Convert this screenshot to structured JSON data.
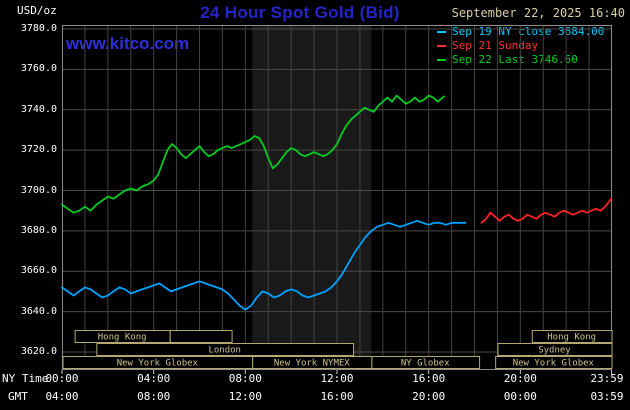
{
  "header": {
    "title": "24 Hour Spot Gold (Bid)",
    "datetime": "September 22, 2025 16:40",
    "watermark": "www.kitco.com",
    "legend": [
      {
        "label": "Sep 19 NY close 3684.00",
        "color": "#00ccff"
      },
      {
        "label": "Sep 21 Sunday",
        "color": "#ff3030"
      },
      {
        "label": "Sep 22 Last 3746.60",
        "color": "#00cc22"
      }
    ]
  },
  "axes": {
    "unit": "USD/oz",
    "ny_label": "NY Time",
    "gmt_label": "GMT",
    "y_ticks": [
      "3780.0",
      "3760.0",
      "3740.0",
      "3720.0",
      "3700.0",
      "3680.0",
      "3660.0",
      "3640.0",
      "3620.0"
    ],
    "ny_ticks": [
      "00:00",
      "04:00",
      "08:00",
      "12:00",
      "16:00",
      "20:00",
      "23:59"
    ],
    "gmt_ticks": [
      "04:00",
      "08:00",
      "12:00",
      "16:00",
      "20:00",
      "00:00",
      "03:59"
    ]
  },
  "chart_data": {
    "type": "line",
    "title": "24 Hour Spot Gold (Bid)",
    "ylabel": "USD/oz",
    "ylim": [
      3620,
      3780
    ],
    "xlim_hours": [
      0,
      24
    ],
    "grid": true,
    "x_unit": "NY time (hours)",
    "nymex_band_hours": [
      8.3,
      13.5
    ],
    "series": [
      {
        "name": "Sep 19 NY close 3684.00",
        "color": "#00a2ff",
        "points": [
          [
            0,
            3652
          ],
          [
            0.25,
            3650
          ],
          [
            0.5,
            3648
          ],
          [
            0.75,
            3650
          ],
          [
            1,
            3652
          ],
          [
            1.25,
            3651
          ],
          [
            1.5,
            3649
          ],
          [
            1.75,
            3647
          ],
          [
            2,
            3648
          ],
          [
            2.25,
            3650
          ],
          [
            2.5,
            3652
          ],
          [
            2.75,
            3651
          ],
          [
            3,
            3649
          ],
          [
            3.25,
            3650
          ],
          [
            3.5,
            3651
          ],
          [
            3.75,
            3652
          ],
          [
            4,
            3653
          ],
          [
            4.25,
            3654
          ],
          [
            4.5,
            3652
          ],
          [
            4.75,
            3650
          ],
          [
            5,
            3651
          ],
          [
            5.25,
            3652
          ],
          [
            5.5,
            3653
          ],
          [
            5.75,
            3654
          ],
          [
            6,
            3655
          ],
          [
            6.25,
            3654
          ],
          [
            6.5,
            3653
          ],
          [
            6.75,
            3652
          ],
          [
            7,
            3651
          ],
          [
            7.25,
            3649
          ],
          [
            7.5,
            3646
          ],
          [
            7.75,
            3643
          ],
          [
            8,
            3641
          ],
          [
            8.25,
            3643
          ],
          [
            8.5,
            3647
          ],
          [
            8.75,
            3650
          ],
          [
            9,
            3649
          ],
          [
            9.25,
            3647
          ],
          [
            9.5,
            3648
          ],
          [
            9.75,
            3650
          ],
          [
            10,
            3651
          ],
          [
            10.25,
            3650
          ],
          [
            10.5,
            3648
          ],
          [
            10.75,
            3647
          ],
          [
            11,
            3648
          ],
          [
            11.25,
            3649
          ],
          [
            11.5,
            3650
          ],
          [
            11.75,
            3652
          ],
          [
            12,
            3655
          ],
          [
            12.25,
            3659
          ],
          [
            12.5,
            3664
          ],
          [
            12.75,
            3669
          ],
          [
            13,
            3673
          ],
          [
            13.25,
            3677
          ],
          [
            13.5,
            3680
          ],
          [
            13.75,
            3682
          ],
          [
            14,
            3683
          ],
          [
            14.25,
            3684
          ],
          [
            14.5,
            3683
          ],
          [
            14.75,
            3682
          ],
          [
            15,
            3683
          ],
          [
            15.25,
            3684
          ],
          [
            15.5,
            3685
          ],
          [
            15.75,
            3684
          ],
          [
            16,
            3683
          ],
          [
            16.25,
            3684
          ],
          [
            16.5,
            3684
          ],
          [
            16.75,
            3683
          ],
          [
            17,
            3684
          ],
          [
            17.3,
            3684
          ],
          [
            17.6,
            3684
          ]
        ]
      },
      {
        "name": "Sep 21 Sunday",
        "color": "#ff2222",
        "points": [
          [
            18.3,
            3684
          ],
          [
            18.5,
            3686
          ],
          [
            18.7,
            3689
          ],
          [
            18.9,
            3687
          ],
          [
            19.1,
            3685
          ],
          [
            19.3,
            3687
          ],
          [
            19.5,
            3688
          ],
          [
            19.7,
            3686
          ],
          [
            19.9,
            3685
          ],
          [
            20.1,
            3686
          ],
          [
            20.3,
            3688
          ],
          [
            20.5,
            3687
          ],
          [
            20.7,
            3686
          ],
          [
            20.9,
            3688
          ],
          [
            21.1,
            3689
          ],
          [
            21.3,
            3688
          ],
          [
            21.5,
            3687
          ],
          [
            21.7,
            3689
          ],
          [
            21.9,
            3690
          ],
          [
            22.1,
            3689
          ],
          [
            22.3,
            3688
          ],
          [
            22.5,
            3689
          ],
          [
            22.7,
            3690
          ],
          [
            22.9,
            3689
          ],
          [
            23.1,
            3690
          ],
          [
            23.3,
            3691
          ],
          [
            23.5,
            3690
          ],
          [
            23.7,
            3692
          ],
          [
            23.98,
            3696
          ]
        ]
      },
      {
        "name": "Sep 22 Last 3746.60",
        "color": "#00cc22",
        "points": [
          [
            0,
            3693
          ],
          [
            0.25,
            3691
          ],
          [
            0.5,
            3689
          ],
          [
            0.75,
            3690
          ],
          [
            1,
            3692
          ],
          [
            1.25,
            3690
          ],
          [
            1.5,
            3693
          ],
          [
            1.75,
            3695
          ],
          [
            2,
            3697
          ],
          [
            2.25,
            3696
          ],
          [
            2.5,
            3698
          ],
          [
            2.75,
            3700
          ],
          [
            3,
            3701
          ],
          [
            3.25,
            3700
          ],
          [
            3.5,
            3702
          ],
          [
            3.75,
            3703
          ],
          [
            4,
            3705
          ],
          [
            4.2,
            3708
          ],
          [
            4.4,
            3714
          ],
          [
            4.6,
            3720
          ],
          [
            4.8,
            3723
          ],
          [
            5,
            3721
          ],
          [
            5.2,
            3718
          ],
          [
            5.4,
            3716
          ],
          [
            5.6,
            3718
          ],
          [
            5.8,
            3720
          ],
          [
            6,
            3722
          ],
          [
            6.2,
            3719
          ],
          [
            6.4,
            3717
          ],
          [
            6.6,
            3718
          ],
          [
            6.8,
            3720
          ],
          [
            7,
            3721
          ],
          [
            7.2,
            3722
          ],
          [
            7.4,
            3721
          ],
          [
            7.6,
            3722
          ],
          [
            7.8,
            3723
          ],
          [
            8,
            3724
          ],
          [
            8.2,
            3725
          ],
          [
            8.4,
            3727
          ],
          [
            8.6,
            3726
          ],
          [
            8.8,
            3722
          ],
          [
            9,
            3716
          ],
          [
            9.2,
            3711
          ],
          [
            9.4,
            3713
          ],
          [
            9.6,
            3716
          ],
          [
            9.8,
            3719
          ],
          [
            10,
            3721
          ],
          [
            10.2,
            3720
          ],
          [
            10.4,
            3718
          ],
          [
            10.6,
            3717
          ],
          [
            10.8,
            3718
          ],
          [
            11,
            3719
          ],
          [
            11.2,
            3718
          ],
          [
            11.4,
            3717
          ],
          [
            11.6,
            3718
          ],
          [
            11.8,
            3720
          ],
          [
            12,
            3723
          ],
          [
            12.2,
            3728
          ],
          [
            12.4,
            3732
          ],
          [
            12.6,
            3735
          ],
          [
            12.8,
            3737
          ],
          [
            13,
            3739
          ],
          [
            13.2,
            3741
          ],
          [
            13.4,
            3740
          ],
          [
            13.6,
            3739
          ],
          [
            13.8,
            3742
          ],
          [
            14,
            3744
          ],
          [
            14.2,
            3746
          ],
          [
            14.4,
            3744
          ],
          [
            14.6,
            3747
          ],
          [
            14.8,
            3745
          ],
          [
            15,
            3743
          ],
          [
            15.2,
            3744
          ],
          [
            15.4,
            3746
          ],
          [
            15.6,
            3744
          ],
          [
            15.8,
            3745
          ],
          [
            16,
            3747
          ],
          [
            16.2,
            3746
          ],
          [
            16.4,
            3744
          ],
          [
            16.67,
            3746.6
          ]
        ]
      }
    ],
    "sessions": [
      {
        "row": 1,
        "label": "Hong Kong",
        "start": 0.55,
        "end": 4.7
      },
      {
        "row": 1,
        "label": "",
        "start": 4.7,
        "end": 7.4
      },
      {
        "row": 1,
        "label": "Hong Kong",
        "start": 20.5,
        "end": 23.98
      },
      {
        "row": 2,
        "label": "London",
        "start": 1.5,
        "end": 12.7
      },
      {
        "row": 2,
        "label": "Sydney",
        "start": 19.0,
        "end": 23.98
      },
      {
        "row": 3,
        "label": "New York Globex",
        "start": 0.02,
        "end": 8.3
      },
      {
        "row": 3,
        "label": "New York NYMEX",
        "start": 8.3,
        "end": 13.5
      },
      {
        "row": 3,
        "label": "NY Globex",
        "start": 13.5,
        "end": 18.2
      },
      {
        "row": 3,
        "label": "New York Globex",
        "start": 18.9,
        "end": 23.98
      }
    ]
  }
}
